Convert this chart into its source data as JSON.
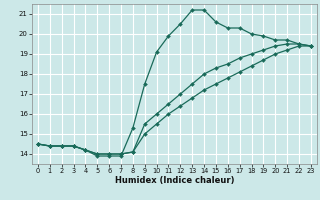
{
  "xlabel": "Humidex (Indice chaleur)",
  "bg_color": "#cce8e8",
  "grid_color": "#ffffff",
  "line_color": "#1a6b5a",
  "xlim": [
    -0.5,
    23.5
  ],
  "ylim": [
    13.5,
    21.5
  ],
  "xticks": [
    0,
    1,
    2,
    3,
    4,
    5,
    6,
    7,
    8,
    9,
    10,
    11,
    12,
    13,
    14,
    15,
    16,
    17,
    18,
    19,
    20,
    21,
    22,
    23
  ],
  "yticks": [
    14,
    15,
    16,
    17,
    18,
    19,
    20,
    21
  ],
  "line1_x": [
    0,
    1,
    2,
    3,
    4,
    5,
    6,
    7,
    8,
    9,
    10,
    11,
    12,
    13,
    14,
    15,
    16,
    17,
    18,
    19,
    20,
    21,
    22,
    23
  ],
  "line1_y": [
    14.5,
    14.4,
    14.4,
    14.4,
    14.2,
    13.9,
    13.9,
    13.9,
    15.3,
    17.5,
    19.1,
    19.9,
    20.5,
    21.2,
    21.2,
    20.6,
    20.3,
    20.3,
    20.0,
    19.9,
    19.7,
    19.7,
    19.5,
    19.4
  ],
  "line2_x": [
    0,
    1,
    2,
    3,
    4,
    5,
    6,
    7,
    8,
    9,
    10,
    11,
    12,
    13,
    14,
    15,
    16,
    17,
    18,
    19,
    20,
    21,
    22,
    23
  ],
  "line2_y": [
    14.5,
    14.4,
    14.4,
    14.4,
    14.2,
    14.0,
    14.0,
    14.0,
    14.1,
    15.5,
    16.0,
    16.5,
    17.0,
    17.5,
    18.0,
    18.3,
    18.5,
    18.8,
    19.0,
    19.2,
    19.4,
    19.5,
    19.5,
    19.4
  ],
  "line3_x": [
    0,
    1,
    2,
    3,
    4,
    5,
    6,
    7,
    8,
    9,
    10,
    11,
    12,
    13,
    14,
    15,
    16,
    17,
    18,
    19,
    20,
    21,
    22,
    23
  ],
  "line3_y": [
    14.5,
    14.4,
    14.4,
    14.4,
    14.2,
    14.0,
    14.0,
    14.0,
    14.1,
    15.0,
    15.5,
    16.0,
    16.4,
    16.8,
    17.2,
    17.5,
    17.8,
    18.1,
    18.4,
    18.7,
    19.0,
    19.2,
    19.4,
    19.4
  ]
}
